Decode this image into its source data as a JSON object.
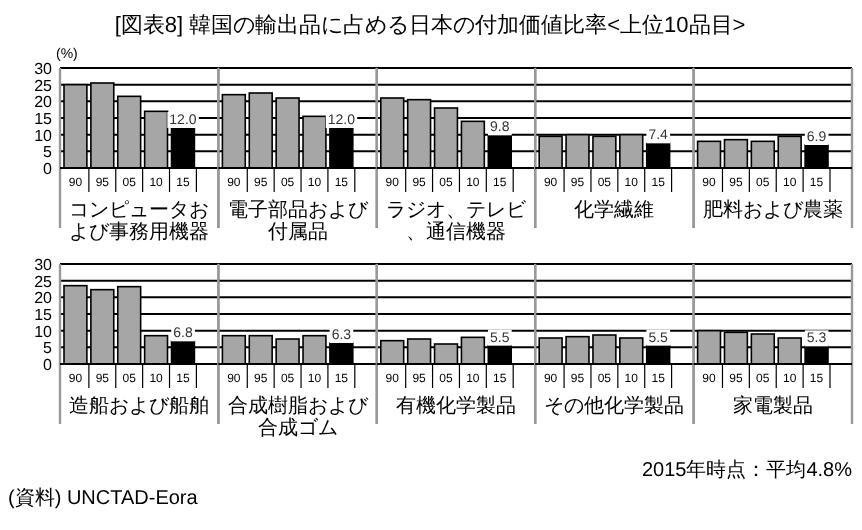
{
  "chart_data": [
    {
      "type": "bar",
      "title": "[図表8] 韓国の輸出品に占める日本の付加価値比率<上位10品目>",
      "ylabel": "(%)",
      "xlabel": "コンピュータおよび事務用機器",
      "categories": [
        "90",
        "95",
        "05",
        "10",
        "15"
      ],
      "values": [
        25,
        25.5,
        21.5,
        17,
        12.0
      ],
      "colors": [
        "#a6a6a6",
        "#a6a6a6",
        "#a6a6a6",
        "#a6a6a6",
        "#000000"
      ],
      "value_labels": [
        null,
        null,
        null,
        null,
        "12.0"
      ],
      "ylim": [
        0,
        30
      ],
      "yticks": [
        0,
        5,
        10,
        15,
        20,
        25,
        30
      ],
      "grid": "y"
    },
    {
      "type": "bar",
      "xlabel": "電子部品および付属品",
      "categories": [
        "90",
        "95",
        "05",
        "10",
        "15"
      ],
      "values": [
        22,
        22.5,
        21,
        15.5,
        12.0
      ],
      "colors": [
        "#a6a6a6",
        "#a6a6a6",
        "#a6a6a6",
        "#a6a6a6",
        "#000000"
      ],
      "value_labels": [
        null,
        null,
        null,
        null,
        "12.0"
      ],
      "ylim": [
        0,
        30
      ],
      "yticks": [
        0,
        5,
        10,
        15,
        20,
        25,
        30
      ],
      "grid": "y",
      "tick_labels": "x"
    },
    {
      "type": "bar",
      "xlabel": "ラジオ、テレビ、通信機器",
      "categories": [
        "90",
        "95",
        "05",
        "10",
        "15"
      ],
      "values": [
        21,
        20.5,
        18,
        14,
        9.8
      ],
      "colors": [
        "#a6a6a6",
        "#a6a6a6",
        "#a6a6a6",
        "#a6a6a6",
        "#000000"
      ],
      "value_labels": [
        null,
        null,
        null,
        null,
        "9.8"
      ],
      "ylim": [
        0,
        30
      ],
      "yticks": [
        0,
        5,
        10,
        15,
        20,
        25,
        30
      ],
      "grid": "y",
      "tick_labels": "x"
    },
    {
      "type": "bar",
      "xlabel": "化学繊維",
      "categories": [
        "90",
        "95",
        "05",
        "10",
        "15"
      ],
      "values": [
        9.5,
        10,
        9.5,
        10,
        7.4
      ],
      "colors": [
        "#a6a6a6",
        "#a6a6a6",
        "#a6a6a6",
        "#a6a6a6",
        "#000000"
      ],
      "value_labels": [
        null,
        null,
        null,
        null,
        "7.4"
      ],
      "ylim": [
        0,
        30
      ],
      "yticks": [
        0,
        5,
        10,
        15,
        20,
        25,
        30
      ],
      "grid": "y",
      "tick_labels": "x"
    },
    {
      "type": "bar",
      "xlabel": "肥料および農薬",
      "categories": [
        "90",
        "95",
        "05",
        "10",
        "15"
      ],
      "values": [
        8,
        8.5,
        8,
        9.5,
        6.9
      ],
      "colors": [
        "#a6a6a6",
        "#a6a6a6",
        "#a6a6a6",
        "#a6a6a6",
        "#000000"
      ],
      "value_labels": [
        null,
        null,
        null,
        null,
        "6.9"
      ],
      "ylim": [
        0,
        30
      ],
      "yticks": [
        0,
        5,
        10,
        15,
        20,
        25,
        30
      ],
      "grid": "y",
      "tick_labels": "x"
    },
    {
      "type": "bar",
      "xlabel": "造船および船舶",
      "categories": [
        "90",
        "95",
        "05",
        "10",
        "15"
      ],
      "values": [
        23.5,
        22.3,
        23.2,
        8.5,
        6.8
      ],
      "colors": [
        "#a6a6a6",
        "#a6a6a6",
        "#a6a6a6",
        "#a6a6a6",
        "#000000"
      ],
      "value_labels": [
        null,
        null,
        null,
        null,
        "6.8"
      ],
      "ylim": [
        0,
        30
      ],
      "yticks": [
        0,
        5,
        10,
        15,
        20,
        25,
        30
      ],
      "grid": "y",
      "annotations": [
        "(資料) UNCTAD-Eora"
      ]
    },
    {
      "type": "bar",
      "xlabel": "合成樹脂および合成ゴム",
      "categories": [
        "90",
        "95",
        "05",
        "10",
        "15"
      ],
      "values": [
        8.5,
        8.5,
        7.5,
        8.5,
        6.3
      ],
      "colors": [
        "#a6a6a6",
        "#a6a6a6",
        "#a6a6a6",
        "#a6a6a6",
        "#000000"
      ],
      "value_labels": [
        null,
        null,
        null,
        null,
        "6.3"
      ],
      "ylim": [
        0,
        30
      ],
      "yticks": [
        0,
        5,
        10,
        15,
        20,
        25,
        30
      ],
      "grid": "y",
      "tick_labels": "x"
    },
    {
      "type": "bar",
      "xlabel": "有機化学製品",
      "categories": [
        "90",
        "95",
        "05",
        "10",
        "15"
      ],
      "values": [
        7,
        7.5,
        6,
        8,
        5.5
      ],
      "colors": [
        "#a6a6a6",
        "#a6a6a6",
        "#a6a6a6",
        "#a6a6a6",
        "#000000"
      ],
      "value_labels": [
        null,
        null,
        null,
        null,
        "5.5"
      ],
      "ylim": [
        0,
        30
      ],
      "yticks": [
        0,
        5,
        10,
        15,
        20,
        25,
        30
      ],
      "grid": "y",
      "tick_labels": "x"
    },
    {
      "type": "bar",
      "xlabel": "その他化学製品",
      "categories": [
        "90",
        "95",
        "05",
        "10",
        "15"
      ],
      "values": [
        7.8,
        8.2,
        8.7,
        7.8,
        5.5
      ],
      "colors": [
        "#a6a6a6",
        "#a6a6a6",
        "#a6a6a6",
        "#a6a6a6",
        "#000000"
      ],
      "value_labels": [
        null,
        null,
        null,
        null,
        "5.5"
      ],
      "ylim": [
        0,
        30
      ],
      "yticks": [
        0,
        5,
        10,
        15,
        20,
        25,
        30
      ],
      "grid": "y",
      "tick_labels": "x"
    },
    {
      "type": "bar",
      "xlabel": "家電製品",
      "categories": [
        "90",
        "95",
        "05",
        "10",
        "15"
      ],
      "values": [
        10,
        9.5,
        9,
        7.8,
        5.3
      ],
      "colors": [
        "#a6a6a6",
        "#a6a6a6",
        "#a6a6a6",
        "#a6a6a6",
        "#000000"
      ],
      "value_labels": [
        null,
        null,
        null,
        null,
        "5.3"
      ],
      "ylim": [
        0,
        30
      ],
      "yticks": [
        0,
        5,
        10,
        15,
        20,
        25,
        30
      ],
      "grid": "y",
      "tick_labels": "x",
      "annotations": [
        "2015年時点：平均4.8%"
      ]
    }
  ]
}
